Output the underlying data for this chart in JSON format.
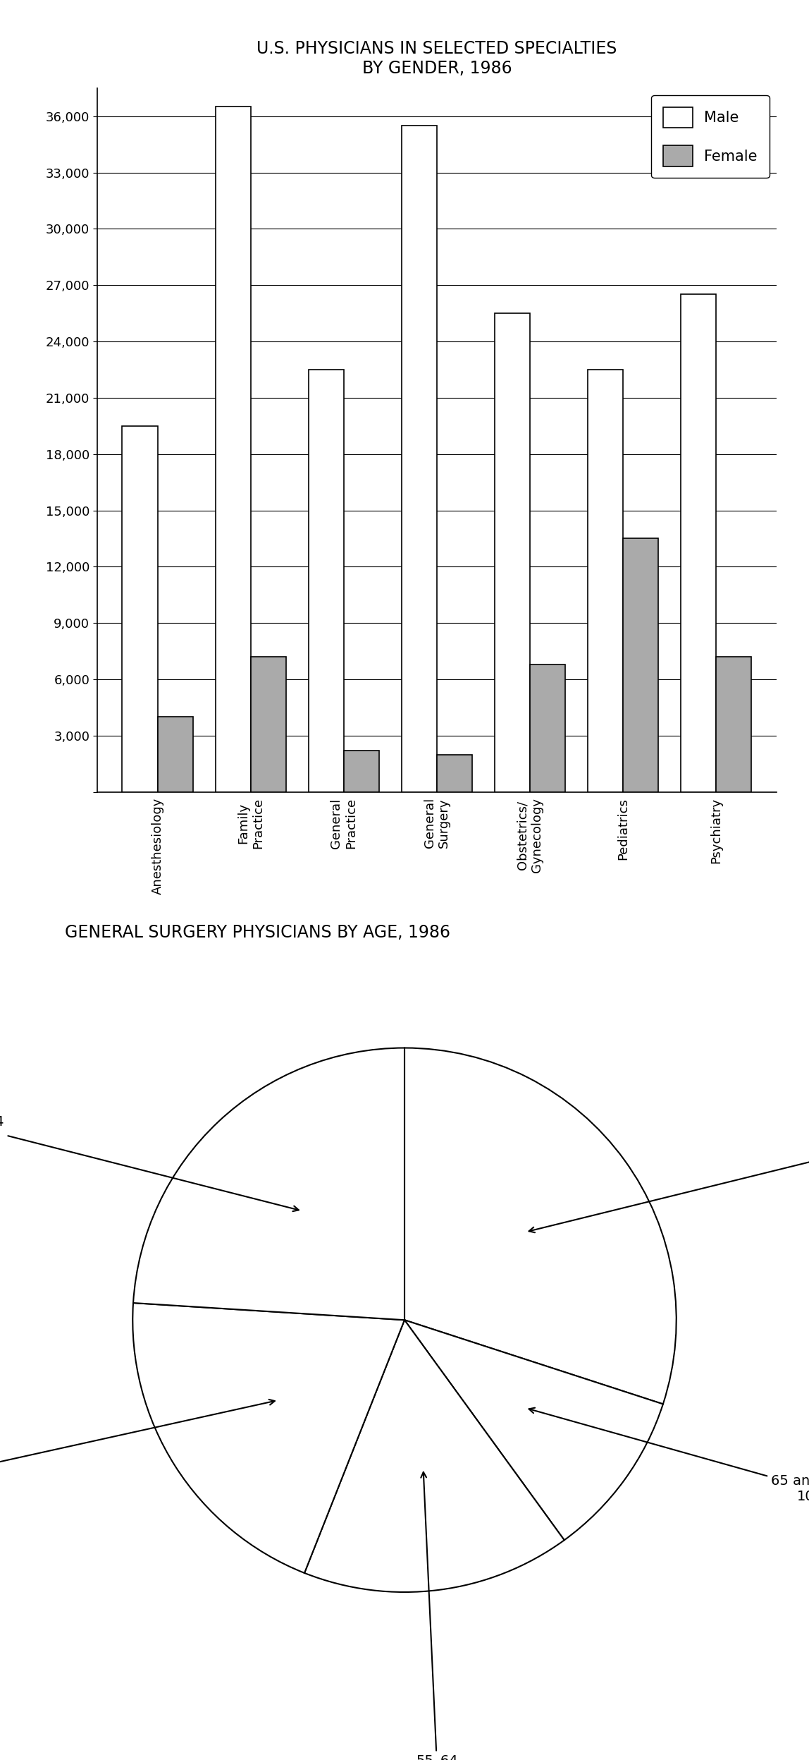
{
  "bar_title": "U.S. PHYSICIANS IN SELECTED SPECIALTIES\nBY GENDER, 1986",
  "categories": [
    "Anesthesiology",
    "Family\nPractice",
    "General\nPractice",
    "General\nSurgery",
    "Obstetrics/\nGynecology",
    "Pediatrics",
    "Psychiatry"
  ],
  "male_values": [
    19500,
    36500,
    22500,
    35500,
    25500,
    22500,
    26500
  ],
  "female_values": [
    4000,
    7200,
    2200,
    2000,
    6800,
    13500,
    7200
  ],
  "male_color": "#ffffff",
  "female_color": "#aaaaaa",
  "bar_edge_color": "#000000",
  "ylim": [
    0,
    37500
  ],
  "yticks": [
    0,
    3000,
    6000,
    9000,
    12000,
    15000,
    18000,
    21000,
    24000,
    27000,
    30000,
    33000,
    36000
  ],
  "ytick_labels": [
    "",
    "3,000",
    "6,000",
    "9,000",
    "12,000",
    "15,000",
    "18,000",
    "21,000",
    "24,000",
    "27,000",
    "30,000",
    "33,000",
    "36,000"
  ],
  "bar_title_fontsize": 17,
  "tick_fontsize": 13,
  "legend_fontsize": 15,
  "pie_title": "GENERAL SURGERY PHYSICIANS BY AGE, 1986",
  "pie_sizes_ordered": [
    30,
    10,
    16,
    20,
    24
  ],
  "pie_colors": [
    "#ffffff",
    "#ffffff",
    "#ffffff",
    "#ffffff",
    "#ffffff"
  ],
  "pie_edge_color": "#000000",
  "pie_title_fontsize": 17,
  "pie_label_fontsize": 14,
  "background_color": "#ffffff"
}
